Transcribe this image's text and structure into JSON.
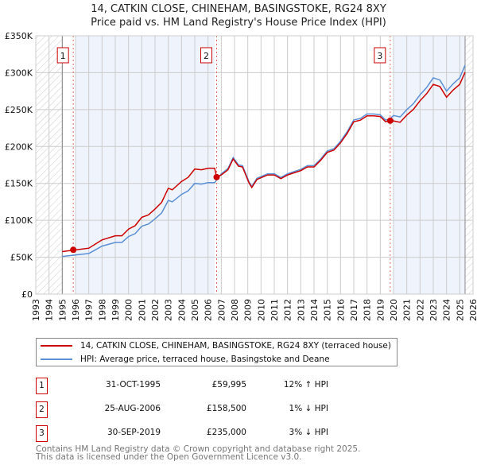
{
  "title_line1": "14, CATKIN CLOSE, CHINEHAM, BASINGSTOKE, RG24 8XY",
  "title_line2": "Price paid vs. HM Land Registry's House Price Index (HPI)",
  "colors": {
    "property": "#cc0000",
    "hpi": "#5b8fd6",
    "band": "#eef3fc"
  },
  "chart_data": {
    "type": "line",
    "xlim": [
      1993,
      2026
    ],
    "ylim": [
      0,
      350000
    ],
    "yticks": [
      0,
      50000,
      100000,
      150000,
      200000,
      250000,
      300000,
      350000
    ],
    "ytick_labels": [
      "£0",
      "£50K",
      "£100K",
      "£150K",
      "£200K",
      "£250K",
      "£300K",
      "£350K"
    ],
    "xticks": [
      "1993",
      "1994",
      "1995",
      "1996",
      "1997",
      "1998",
      "1999",
      "2000",
      "2001",
      "2002",
      "2003",
      "2004",
      "2005",
      "2006",
      "2007",
      "2008",
      "2009",
      "2010",
      "2011",
      "2012",
      "2013",
      "2014",
      "2015",
      "2016",
      "2017",
      "2018",
      "2019",
      "2020",
      "2021",
      "2022",
      "2023",
      "2024",
      "2025",
      "2026"
    ],
    "grid": true,
    "hatched_ranges": [
      [
        1993,
        1995
      ],
      [
        2025.4,
        2026
      ]
    ],
    "shaded_ranges": [
      [
        1996,
        2006.5
      ],
      [
        2020,
        2025.4
      ]
    ],
    "series": [
      {
        "name": "14, CATKIN CLOSE, CHINEHAM, BASINGSTOKE, RG24 8XY (terraced house)",
        "color": "#cc0000",
        "x": [
          1995,
          1996,
          1997,
          1997.5,
          1998,
          1999,
          1999.5,
          2000,
          2000.5,
          2001,
          2001.5,
          2002,
          2002.5,
          2003,
          2003.3,
          2004,
          2004.5,
          2005,
          2005.5,
          2006,
          2006.5,
          2006.65,
          2007,
          2007.5,
          2007.9,
          2008.3,
          2008.6,
          2009.1,
          2009.3,
          2009.7,
          2010.5,
          2011,
          2011.5,
          2012,
          2012.5,
          2013,
          2013.5,
          2014,
          2014.5,
          2015,
          2015.5,
          2016,
          2016.5,
          2017,
          2017.5,
          2018,
          2018.5,
          2019,
          2019.4,
          2019.75,
          2020,
          2020.5,
          2021,
          2021.5,
          2022,
          2022.5,
          2023,
          2023.5,
          2024,
          2024.5,
          2025,
          2025.4
        ],
        "y": [
          57600,
          59900,
          62200,
          67800,
          73500,
          79100,
          79100,
          88100,
          92700,
          104000,
          107400,
          115300,
          124300,
          143500,
          141300,
          152600,
          158200,
          169500,
          168400,
          170600,
          170600,
          158500,
          161400,
          168300,
          183200,
          173300,
          172300,
          150500,
          144500,
          155400,
          161400,
          161400,
          156400,
          161400,
          164300,
          167300,
          172300,
          172300,
          181200,
          192100,
          195000,
          204900,
          217800,
          233600,
          235600,
          241600,
          241600,
          240600,
          233600,
          235000,
          234700,
          232800,
          242500,
          250300,
          261900,
          271600,
          284200,
          281300,
          266800,
          276500,
          284200,
          300700
        ]
      },
      {
        "name": "HPI: Average price, terraced house, Basingstoke and Deane",
        "color": "#5b8fd6",
        "x": [
          1995,
          1996,
          1997,
          1997.5,
          1998,
          1999,
          1999.5,
          2000,
          2000.5,
          2001,
          2001.5,
          2002,
          2002.5,
          2003,
          2003.3,
          2004,
          2004.5,
          2005,
          2005.5,
          2006,
          2006.5,
          2007,
          2007.5,
          2007.9,
          2008.3,
          2008.6,
          2009.1,
          2009.3,
          2009.7,
          2010.5,
          2011,
          2011.5,
          2012,
          2012.5,
          2013,
          2013.5,
          2014,
          2014.5,
          2015,
          2015.5,
          2016,
          2016.5,
          2017,
          2017.5,
          2018,
          2018.5,
          2019,
          2019.4,
          2019.7,
          2020,
          2020.5,
          2021,
          2021.5,
          2022,
          2022.5,
          2023,
          2023.5,
          2024,
          2024.5,
          2025,
          2025.4
        ],
        "y": [
          51000,
          53000,
          55000,
          60000,
          65000,
          70000,
          70000,
          78000,
          82000,
          92000,
          95000,
          102000,
          110000,
          127000,
          125000,
          135000,
          140000,
          150000,
          149000,
          151000,
          151000,
          163000,
          170000,
          185000,
          175000,
          174000,
          152000,
          146000,
          157000,
          163000,
          163000,
          158000,
          163000,
          166000,
          169000,
          174000,
          174000,
          183000,
          194000,
          197000,
          207000,
          220000,
          236000,
          238000,
          244000,
          244000,
          243000,
          236000,
          237000,
          242000,
          240000,
          250000,
          258000,
          270000,
          280000,
          293000,
          290000,
          275000,
          285000,
          293000,
          310000
        ]
      }
    ],
    "sales": [
      {
        "num": "1",
        "x": 1995.83,
        "y": 59995
      },
      {
        "num": "2",
        "x": 2006.65,
        "y": 158500
      },
      {
        "num": "3",
        "x": 2019.75,
        "y": 235000
      }
    ]
  },
  "legend": {
    "property": "14, CATKIN CLOSE, CHINEHAM, BASINGSTOKE, RG24 8XY (terraced house)",
    "hpi": "HPI: Average price, terraced house, Basingstoke and Deane"
  },
  "transactions": [
    {
      "num": "1",
      "date": "31-OCT-1995",
      "price": "£59,995",
      "hpi": "12% ↑ HPI"
    },
    {
      "num": "2",
      "date": "25-AUG-2006",
      "price": "£158,500",
      "hpi": "1% ↓ HPI"
    },
    {
      "num": "3",
      "date": "30-SEP-2019",
      "price": "£235,000",
      "hpi": "3% ↓ HPI"
    }
  ],
  "footer": {
    "line1": "Contains HM Land Registry data © Crown copyright and database right 2025.",
    "line2": "This data is licensed under the Open Government Licence v3.0."
  }
}
